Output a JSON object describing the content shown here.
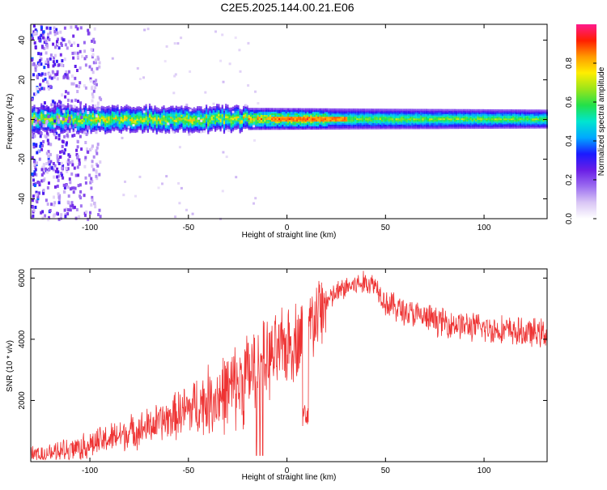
{
  "page": {
    "title": "C2E5.2025.144.00.21.E06"
  },
  "chart_data": [
    {
      "type": "heatmap",
      "title": "C2E5.2025.144.00.21.E06",
      "xlabel": "Height of straight line (km)",
      "ylabel": "Frequency (Hz)",
      "xlim": [
        -130,
        132
      ],
      "ylim": [
        -50,
        48
      ],
      "x_ticks": [
        -100,
        -50,
        0,
        50,
        100
      ],
      "y_ticks": [
        -40,
        -20,
        0,
        20,
        40
      ],
      "colorbar": {
        "label": "Normalized spectral amplitude",
        "range": [
          0,
          1
        ],
        "ticks": [
          "0.0",
          "0.2",
          "0.4",
          "0.6",
          "0.8"
        ],
        "ticks_values": [
          0,
          0.2,
          0.4,
          0.6,
          0.8
        ],
        "colormap": [
          "#ffffff",
          "#d9c6f5",
          "#9b6cf0",
          "#6a1ee6",
          "#1a1aff",
          "#00a8ff",
          "#00e5d0",
          "#22e04a",
          "#9be51a",
          "#ffee00",
          "#ff9a00",
          "#ff1e00",
          "#ff1a8c"
        ]
      },
      "band": {
        "center_hz": 0,
        "halfwidth_hz_at_xlim": [
          5,
          3.5
        ],
        "noise_region_km": [
          -130,
          -95
        ]
      }
    },
    {
      "type": "line",
      "xlabel": "Height of straight line (km)",
      "ylabel": "SNR (10 * v/v)",
      "xlim": [
        -130,
        132
      ],
      "ylim": [
        0,
        6300
      ],
      "x_ticks": [
        -100,
        -50,
        0,
        50,
        100
      ],
      "y_ticks": [
        2000,
        4000,
        6000
      ],
      "line_color": "#ee3333",
      "trend": [
        [
          -130,
          200
        ],
        [
          -120,
          300
        ],
        [
          -110,
          400
        ],
        [
          -100,
          550
        ],
        [
          -90,
          750
        ],
        [
          -80,
          950
        ],
        [
          -70,
          1150
        ],
        [
          -60,
          1400
        ],
        [
          -50,
          1700
        ],
        [
          -40,
          2000
        ],
        [
          -30,
          2300
        ],
        [
          -25,
          2500
        ],
        [
          -20,
          2800
        ],
        [
          -15,
          3100
        ],
        [
          -10,
          3300
        ],
        [
          -5,
          3500
        ],
        [
          0,
          3800
        ],
        [
          5,
          4000
        ],
        [
          10,
          4300
        ],
        [
          15,
          4700
        ],
        [
          20,
          5200
        ],
        [
          25,
          5500
        ],
        [
          30,
          5700
        ],
        [
          40,
          5850
        ],
        [
          45,
          5800
        ],
        [
          50,
          5200
        ],
        [
          60,
          4900
        ],
        [
          70,
          4700
        ],
        [
          80,
          4550
        ],
        [
          90,
          4450
        ],
        [
          100,
          4350
        ],
        [
          110,
          4300
        ],
        [
          120,
          4200
        ],
        [
          132,
          4200
        ]
      ]
    }
  ]
}
